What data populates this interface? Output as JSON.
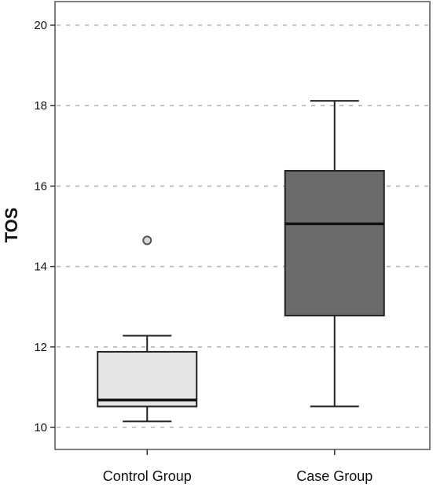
{
  "chart_data": {
    "type": "box",
    "title": "",
    "xlabel": "",
    "ylabel": "TOS",
    "ylim": [
      9.8,
      20.4
    ],
    "yticks": [
      10,
      12,
      14,
      16,
      18,
      20
    ],
    "ytick_labels": [
      "10",
      "12",
      "14",
      "16",
      "18",
      "20"
    ],
    "grid": true,
    "categories": [
      "Control Group",
      "Case Group"
    ],
    "boxes": [
      {
        "category": "Control Group",
        "whisker_low": 10.15,
        "q1": 10.52,
        "median": 10.68,
        "q3": 11.88,
        "whisker_high": 12.28,
        "outliers": [
          14.65
        ],
        "fill": "#e6e6e6"
      },
      {
        "category": "Case Group",
        "whisker_low": 10.52,
        "q1": 12.78,
        "median": 15.06,
        "q3": 16.38,
        "whisker_high": 18.12,
        "outliers": [],
        "fill": "#6b6b6b"
      }
    ]
  }
}
